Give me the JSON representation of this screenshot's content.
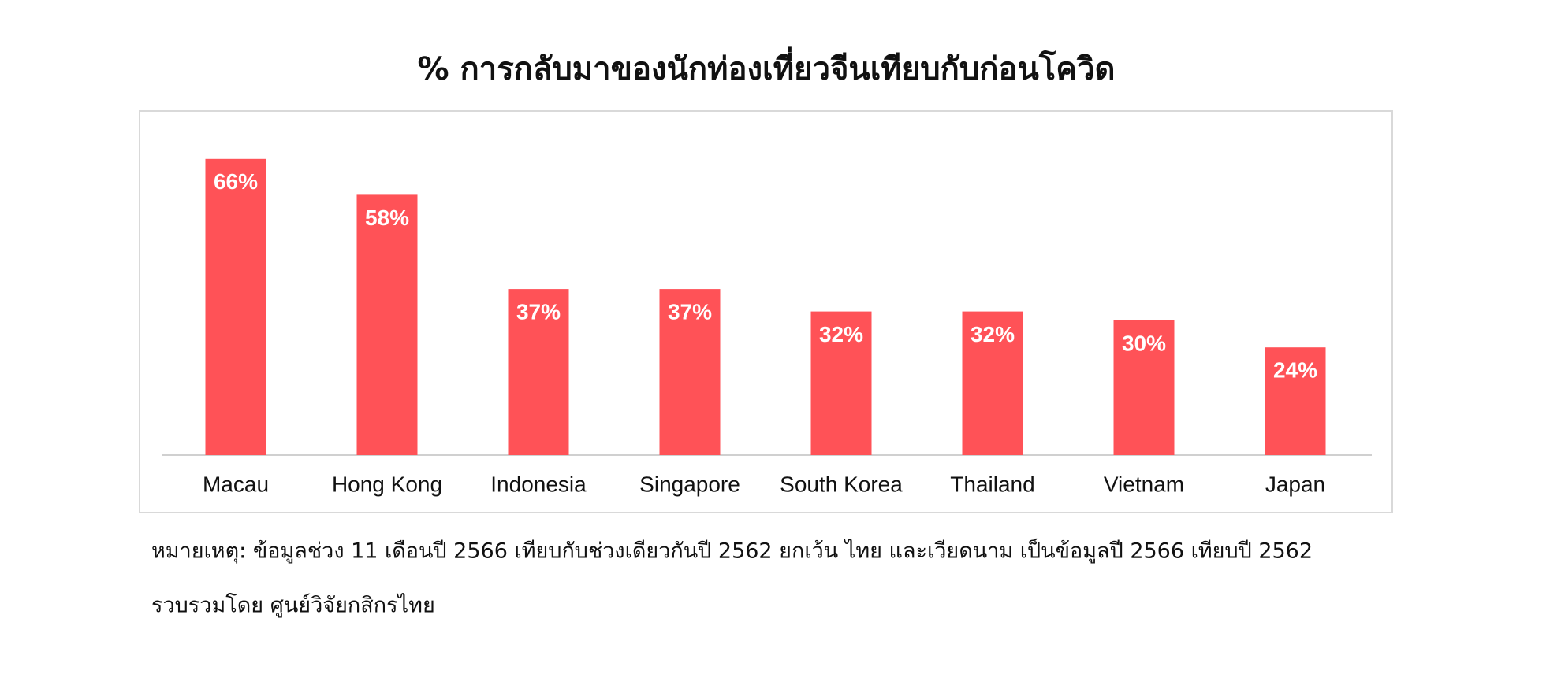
{
  "chart_data": {
    "type": "bar",
    "title": "% การกลับมาของนักท่องเที่ยวจีนเทียบกับก่อนโควิด",
    "categories": [
      "Macau",
      "Hong Kong",
      "Indonesia",
      "Singapore",
      "South Korea",
      "Thailand",
      "Vietnam",
      "Japan"
    ],
    "values": [
      66,
      58,
      37,
      37,
      32,
      32,
      30,
      24
    ],
    "value_labels": [
      "66%",
      "58%",
      "37%",
      "37%",
      "32%",
      "32%",
      "30%",
      "24%"
    ],
    "color": "#ff5257",
    "annotations": [
      "หมายเหตุ: ข้อมูลช่วง 11 เดือนปี 2566 เทียบกับช่วงเดียวกันปี 2562 ยกเว้น ไทย และเวียดนาม เป็นข้อมูลปี 2566 เทียบปี 2562",
      "รวบรวมโดย ศูนย์วิจัยกสิกรไทย"
    ]
  }
}
